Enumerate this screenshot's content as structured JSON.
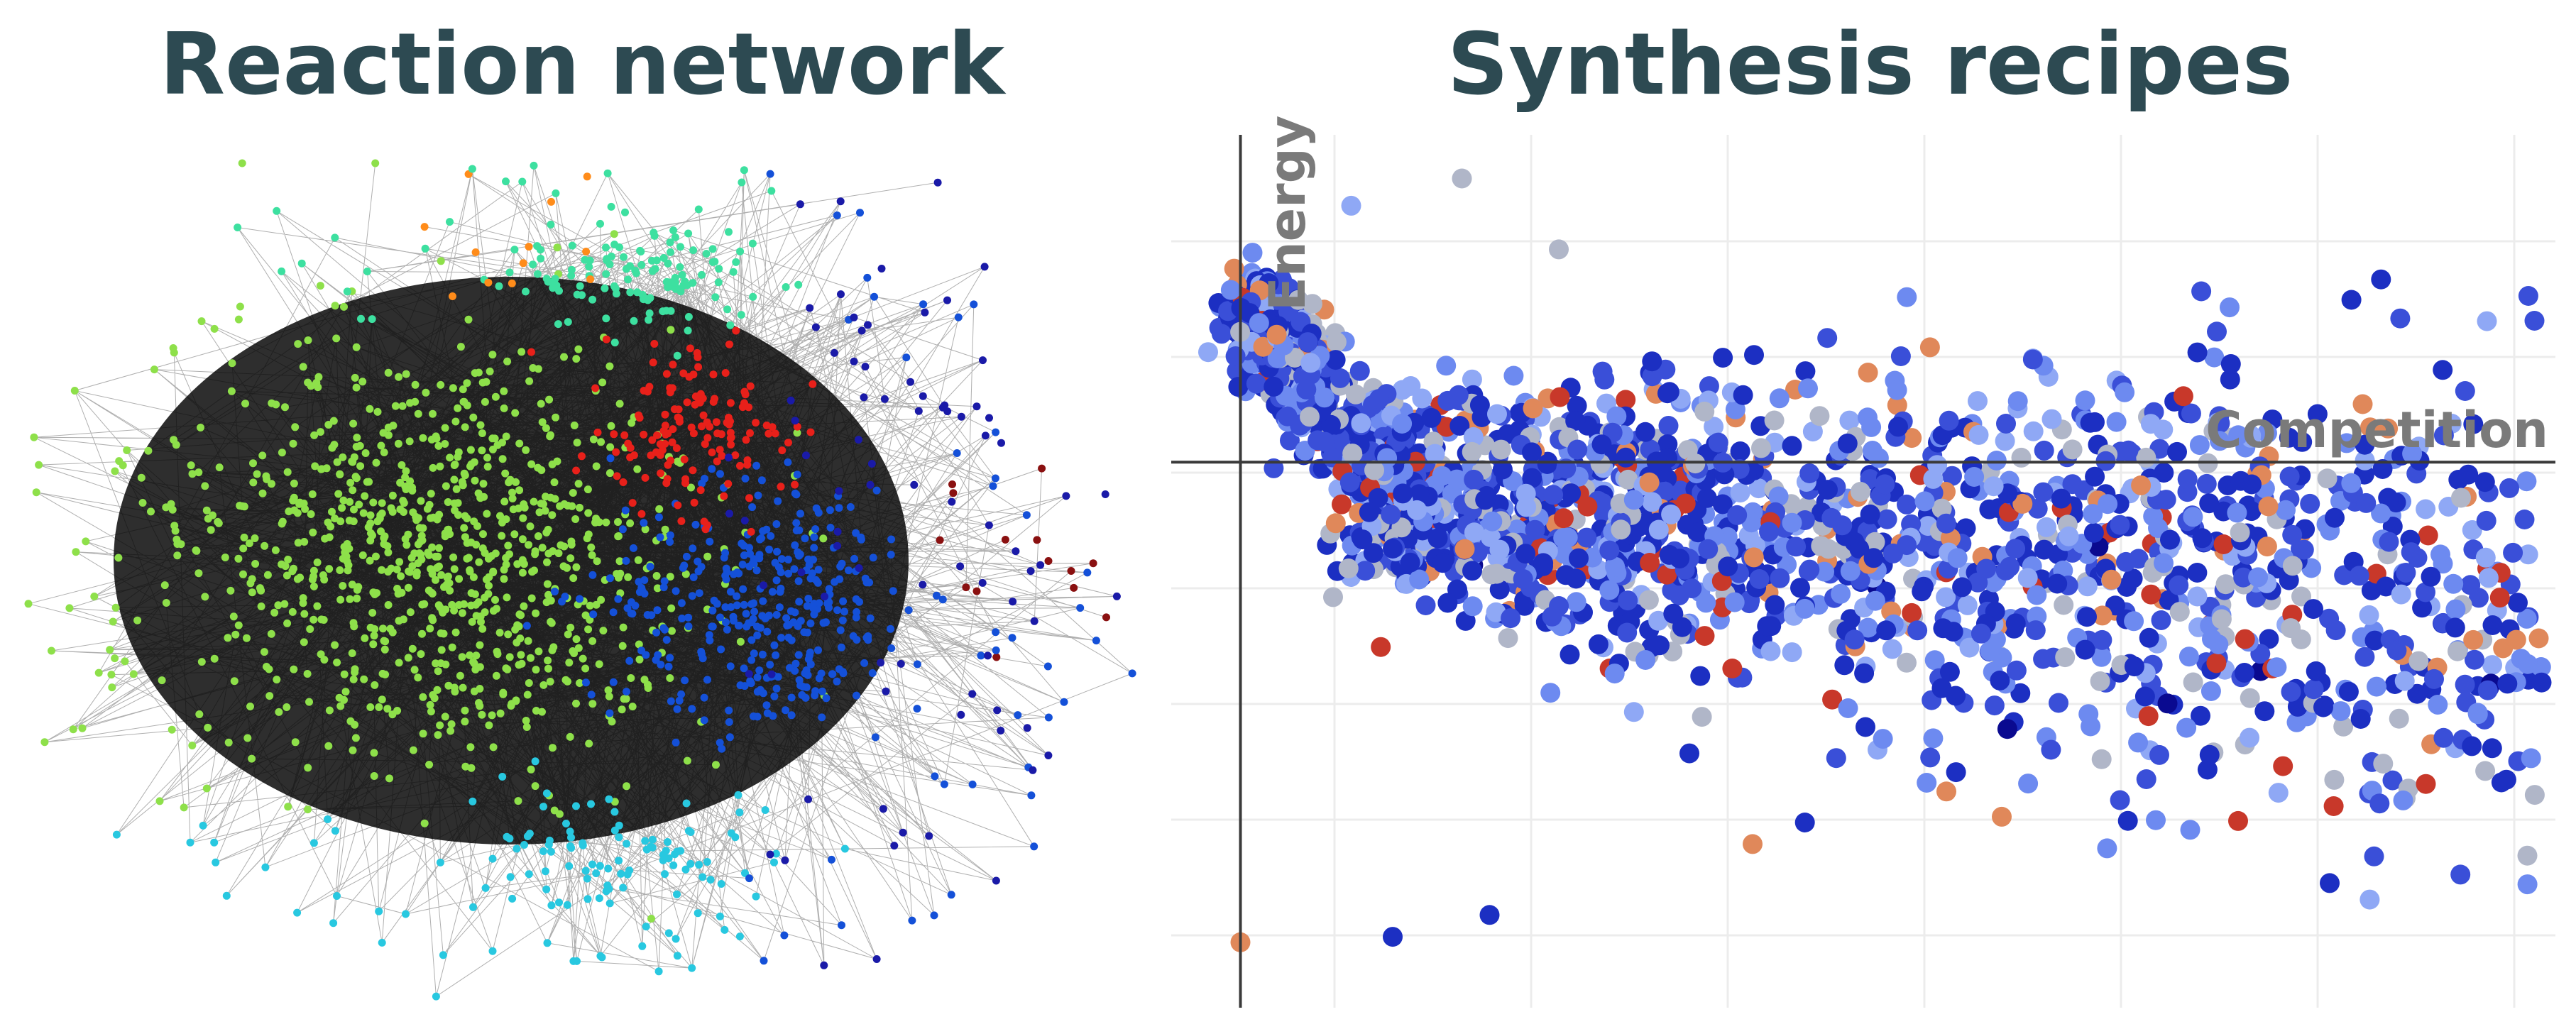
{
  "panels": {
    "left": {
      "title": "Reaction network"
    },
    "right": {
      "title": "Synthesis recipes"
    }
  },
  "colors": {
    "title": "#2d4a52",
    "axis_label": "#7a7a7a",
    "grid": "#ececec",
    "axis": "#3a3a3a",
    "edge": "#1a1a1a",
    "clusters": {
      "lime": "#8ee04a",
      "red": "#e8201a",
      "blue": "#1450d8",
      "teal": "#3de0a0",
      "cyan": "#28c8e0",
      "orange": "#ff8c1a",
      "darkblue": "#1a1aa8",
      "darkred": "#8a1010"
    },
    "scatter_palette": [
      "#1c2fc2",
      "#3a4fd8",
      "#6d8af0",
      "#8fa8f5",
      "#b0b6c8",
      "#e0885a",
      "#c8382a",
      "#0a0a90"
    ]
  },
  "chart_data": [
    {
      "type": "network",
      "title": "Reaction network",
      "clusters": [
        {
          "name": "lime",
          "nodes": 900
        },
        {
          "name": "blue",
          "nodes": 360
        },
        {
          "name": "red",
          "nodes": 140
        },
        {
          "name": "teal",
          "nodes": 120
        },
        {
          "name": "cyan",
          "nodes": 90
        },
        {
          "name": "darkblue",
          "nodes": 50
        },
        {
          "name": "orange",
          "nodes": 12
        },
        {
          "name": "darkred",
          "nodes": 14
        }
      ]
    },
    {
      "type": "scatter",
      "title": "Synthesis recipes",
      "xlabel": "Competition",
      "ylabel": "Energy",
      "xlim": [
        0,
        1
      ],
      "ylim": [
        -1,
        0.6
      ],
      "grid": true,
      "point_count": 2200,
      "notable_points": [
        {
          "x": 0.13,
          "y": 0.47,
          "color": "#8fa8f5"
        },
        {
          "x": 0.21,
          "y": 0.52,
          "color": "#b0b6c8"
        },
        {
          "x": 0.28,
          "y": 0.39,
          "color": "#b0b6c8"
        },
        {
          "x": 0.05,
          "y": -0.88,
          "color": "#e0885a"
        },
        {
          "x": 0.16,
          "y": -0.87,
          "color": "#1c2fc2"
        },
        {
          "x": 0.23,
          "y": -0.83,
          "color": "#1c2fc2"
        },
        {
          "x": 0.42,
          "y": -0.7,
          "color": "#e0885a"
        },
        {
          "x": 0.6,
          "y": -0.65,
          "color": "#e0885a"
        },
        {
          "x": 0.91,
          "y": -0.21,
          "color": "#1c2fc2"
        },
        {
          "x": 0.98,
          "y": -0.37,
          "color": "#6d8af0"
        },
        {
          "x": 0.89,
          "y": -0.62,
          "color": "#6d8af0"
        }
      ]
    }
  ]
}
